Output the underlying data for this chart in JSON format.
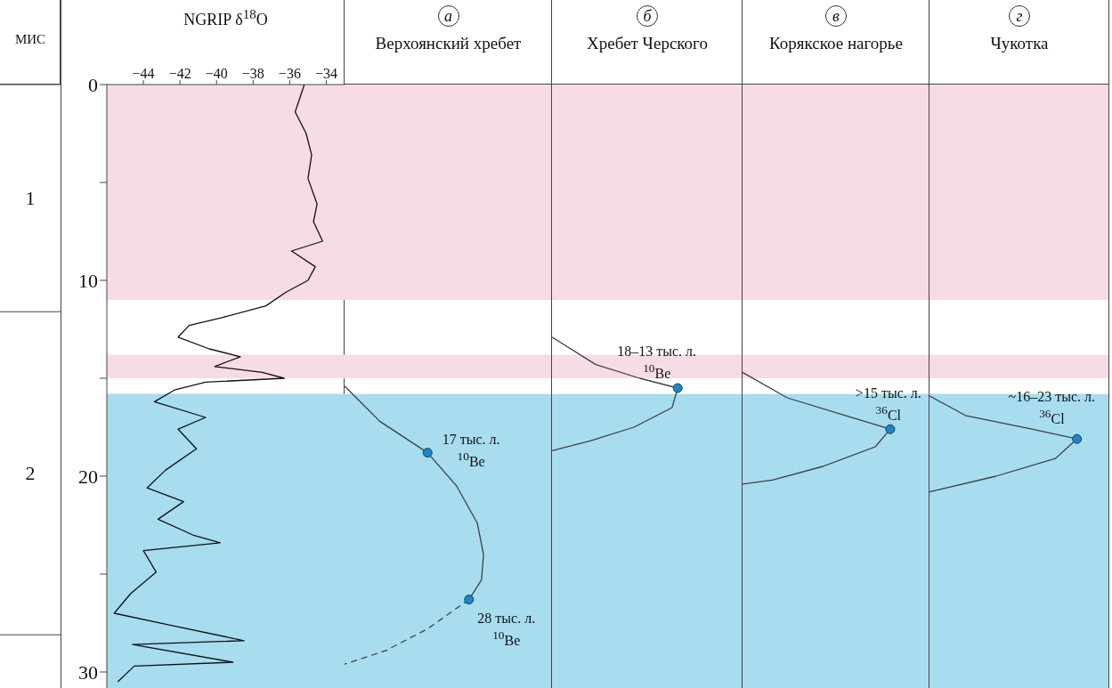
{
  "chart_data": [
    {
      "type": "line",
      "title": "NGRIP δ$^{18}$O",
      "annotations": [
        "МИС",
        "1",
        "2"
      ],
      "xlim": [
        -46,
        -33
      ],
      "xticks": [
        -44,
        -42,
        -40,
        -38,
        -36,
        -34
      ],
      "ylim": [
        31,
        0
      ],
      "yticks": [
        0,
        {
          "value": 5,
          "label": null
        },
        10,
        {
          "value": 15,
          "label": null
        },
        20,
        {
          "value": 25,
          "label": null
        },
        30
      ],
      "series": [
        {
          "color": "#111111",
          "x": [
            -35.2,
            -35.7,
            -35.1,
            -34.8,
            -35,
            -34.5,
            -34.7,
            -34.2,
            -35.9,
            -34.6,
            -35,
            -36.2,
            -37.3,
            -39.7,
            -41.5,
            -42.1,
            -40.4,
            -38.7,
            -40.1,
            -37.5,
            -36.3,
            -40.6,
            -42.3,
            -43.4,
            -40.6,
            -42.1,
            -41.1,
            -42.8,
            -43.8,
            -41.8,
            -43.2,
            -41.3,
            -39.8,
            -44,
            -43.3,
            -44.7,
            -45.6,
            -42.6,
            -38.5,
            -44.6,
            -39.1,
            -44.5,
            -45.4
          ],
          "values": [
            0,
            1.4,
            2.5,
            3.6,
            4.8,
            6.1,
            7,
            8,
            8.5,
            9.3,
            10,
            10.6,
            11.3,
            11.9,
            12.3,
            12.9,
            13.5,
            13.9,
            14.4,
            14.7,
            15,
            15.2,
            15.6,
            16.2,
            17,
            17.6,
            18.6,
            19.7,
            20.6,
            21.3,
            22.2,
            23,
            23.4,
            23.8,
            24.9,
            26,
            27,
            27.6,
            28.4,
            28.6,
            29.5,
            29.7,
            30.5
          ]
        }
      ],
      "bands": [
        {
          "axis": "y",
          "from": 0,
          "to": 11,
          "color": "#f6dde3"
        },
        {
          "axis": "y",
          "from": 13.8,
          "to": 15,
          "color": "#f6dde3"
        },
        {
          "axis": "y",
          "from": 15.8,
          "to": 31,
          "color": "#a8dcef"
        }
      ]
    },
    {
      "type": "other",
      "title": "а",
      "subtitle": "Верхоянский хребет",
      "annotations": [
        "17 тыс. л.\n$^{10}$Be",
        "28 тыс. л.\n$^{10}$Be"
      ]
    },
    {
      "type": "other",
      "title": "б",
      "subtitle": "Хребет Черского",
      "annotations": [
        "18–13 тыс. л.\n$^{10}$Be"
      ]
    },
    {
      "type": "other",
      "title": "в",
      "subtitle": "Корякское нагорье",
      "annotations": [
        ">15 тыс. л.\n$^{36}$Cl"
      ]
    },
    {
      "type": "other",
      "title": "г",
      "subtitle": "Чукотка",
      "annotations": [
        "~16–23 тыс. л.\n$^{36}$Cl"
      ]
    }
  ]
}
